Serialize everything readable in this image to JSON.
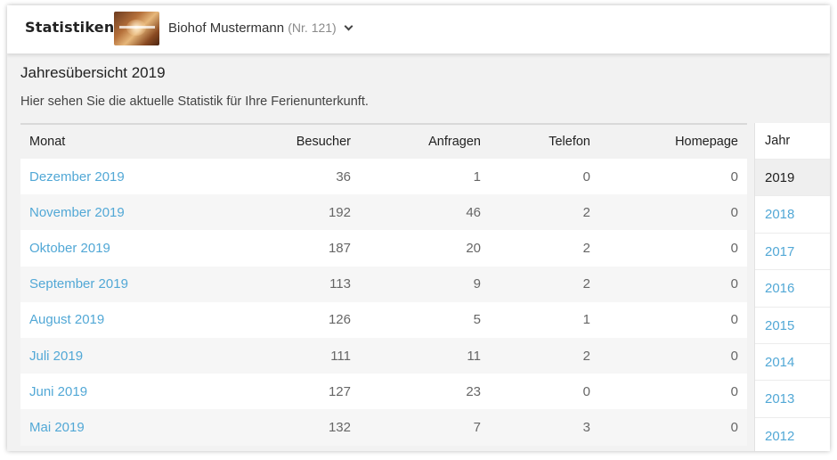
{
  "header": {
    "app_title": "Statistiken",
    "thumbnail_icon": "farm-photo-thumbnail",
    "farm_name": "Biohof Mustermann",
    "farm_number": "(Nr. 121)"
  },
  "main": {
    "title": "Jahresübersicht 2019",
    "description": "Hier sehen Sie die aktuelle Statistik für Ihre Ferienunterkunft."
  },
  "table": {
    "columns": [
      "Monat",
      "Besucher",
      "Anfragen",
      "Telefon",
      "Homepage"
    ],
    "rows": [
      {
        "month": "Dezember 2019",
        "besucher": "36",
        "anfragen": "1",
        "telefon": "0",
        "homepage": "0"
      },
      {
        "month": "November 2019",
        "besucher": "192",
        "anfragen": "46",
        "telefon": "2",
        "homepage": "0"
      },
      {
        "month": "Oktober 2019",
        "besucher": "187",
        "anfragen": "20",
        "telefon": "2",
        "homepage": "0"
      },
      {
        "month": "September 2019",
        "besucher": "113",
        "anfragen": "9",
        "telefon": "2",
        "homepage": "0"
      },
      {
        "month": "August 2019",
        "besucher": "126",
        "anfragen": "5",
        "telefon": "1",
        "homepage": "0"
      },
      {
        "month": "Juli 2019",
        "besucher": "111",
        "anfragen": "11",
        "telefon": "2",
        "homepage": "0"
      },
      {
        "month": "Juni 2019",
        "besucher": "127",
        "anfragen": "23",
        "telefon": "0",
        "homepage": "0"
      },
      {
        "month": "Mai 2019",
        "besucher": "132",
        "anfragen": "7",
        "telefon": "3",
        "homepage": "0"
      }
    ]
  },
  "year_panel": {
    "heading": "Jahr",
    "selected": "2019",
    "years": [
      "2019",
      "2018",
      "2017",
      "2016",
      "2015",
      "2014",
      "2013",
      "2012"
    ]
  },
  "colors": {
    "link": "#52a8d6",
    "background": "#f2f2f2"
  }
}
